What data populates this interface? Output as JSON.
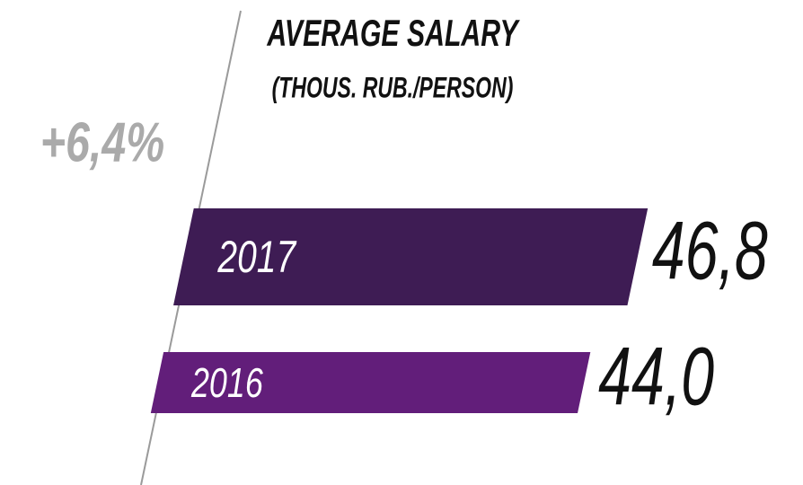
{
  "chart_data": {
    "type": "bar",
    "orientation": "horizontal",
    "title": "AVERAGE SALARY",
    "subtitle": "(THOUS. RUB./PERSON)",
    "annotation": "+6,4%",
    "categories": [
      "2017",
      "2016"
    ],
    "values": [
      46.8,
      44.0
    ],
    "value_labels": [
      "46,8",
      "44,0"
    ],
    "colors": [
      "#3e1c54",
      "#621e7a"
    ]
  }
}
